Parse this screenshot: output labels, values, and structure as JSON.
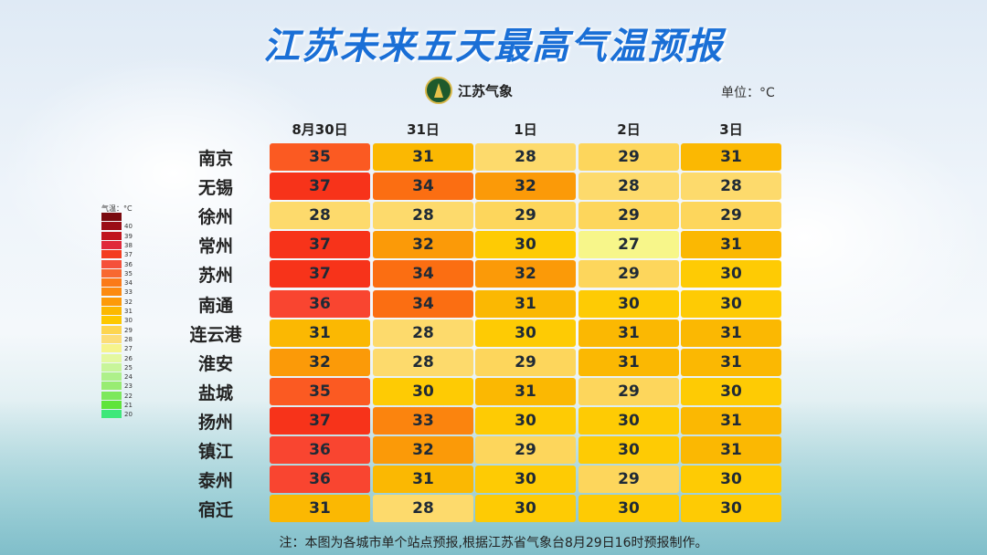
{
  "title": "江苏未来五天最高气温预报",
  "logo_text": "江苏气象",
  "unit_label": "单位：°C",
  "legend": {
    "title": "气温：°C",
    "labels": [
      "",
      "40",
      "39",
      "38",
      "37",
      "36",
      "35",
      "34",
      "33",
      "32",
      "31",
      "30",
      "29",
      "28",
      "27",
      "26",
      "25",
      "24",
      "23",
      "22",
      "21",
      "20"
    ],
    "colors": [
      "#7a0a10",
      "#9b0d16",
      "#c0141e",
      "#e0283a",
      "#f43c20",
      "#f5503a",
      "#f86830",
      "#fb7a18",
      "#fc8a10",
      "#fd9a08",
      "#fcb800",
      "#fdc800",
      "#fdd550",
      "#fcdd78",
      "#f6f48c",
      "#e4f8a0",
      "#c8f59a",
      "#aef08a",
      "#98ec72",
      "#7de85c",
      "#5fe43a",
      "#3ee87a"
    ]
  },
  "color_scale": {
    "27": "#f7f68a",
    "28": "#fdda6c",
    "29": "#fdd65c",
    "30": "#fecb04",
    "31": "#fbb802",
    "32": "#fb9a08",
    "33": "#fb840e",
    "34": "#fb6e12",
    "35": "#fb5a22",
    "36": "#f94530",
    "37": "#f7331a"
  },
  "days": [
    "8月30日",
    "31日",
    "1日",
    "2日",
    "3日"
  ],
  "cities": [
    {
      "name": "南京",
      "temps": [
        35,
        31,
        28,
        29,
        31
      ]
    },
    {
      "name": "无锡",
      "temps": [
        37,
        34,
        32,
        28,
        28
      ]
    },
    {
      "name": "徐州",
      "temps": [
        28,
        28,
        29,
        29,
        29
      ]
    },
    {
      "name": "常州",
      "temps": [
        37,
        32,
        30,
        27,
        31
      ]
    },
    {
      "name": "苏州",
      "temps": [
        37,
        34,
        32,
        29,
        30
      ]
    },
    {
      "name": "南通",
      "temps": [
        36,
        34,
        31,
        30,
        30
      ]
    },
    {
      "name": "连云港",
      "temps": [
        31,
        28,
        30,
        31,
        31
      ]
    },
    {
      "name": "淮安",
      "temps": [
        32,
        28,
        29,
        31,
        31
      ]
    },
    {
      "name": "盐城",
      "temps": [
        35,
        30,
        31,
        29,
        30
      ]
    },
    {
      "name": "扬州",
      "temps": [
        37,
        33,
        30,
        30,
        31
      ]
    },
    {
      "name": "镇江",
      "temps": [
        36,
        32,
        29,
        30,
        31
      ]
    },
    {
      "name": "泰州",
      "temps": [
        36,
        31,
        30,
        29,
        30
      ]
    },
    {
      "name": "宿迁",
      "temps": [
        31,
        28,
        30,
        30,
        30
      ]
    }
  ],
  "note": "注：本图为各城市单个站点预报,根据江苏省气象台8月29日16时预报制作。"
}
